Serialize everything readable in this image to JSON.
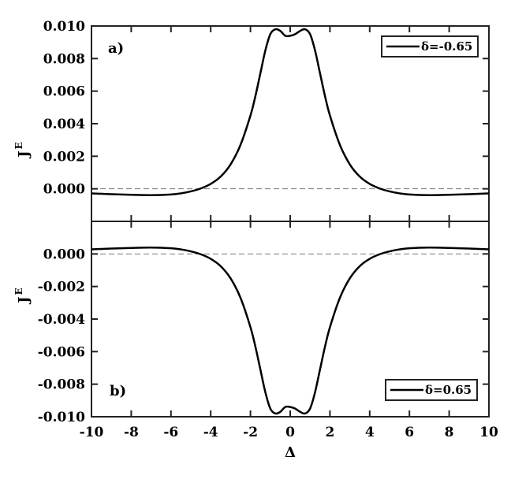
{
  "chart_data": [
    {
      "type": "line",
      "panel_label": "a)",
      "ylabel": "J",
      "ylabel_superscript": "E",
      "xlabel": "",
      "xlim": [
        -10,
        10
      ],
      "ylim": [
        -0.002,
        0.01
      ],
      "yticks": [
        0.0,
        0.002,
        0.004,
        0.006,
        0.008,
        0.01
      ],
      "ytick_labels": [
        "0.000",
        "0.002",
        "0.004",
        "0.006",
        "0.008",
        "0.010"
      ],
      "reference_line_y": 0,
      "legend_position": "top-right",
      "grid": false,
      "series": [
        {
          "name": "δ=-0.65",
          "color": "#000000",
          "x": [
            -10,
            -9,
            -8,
            -7,
            -6,
            -5.5,
            -5,
            -4.5,
            -4,
            -3.5,
            -3,
            -2.5,
            -2,
            -1.75,
            -1.5,
            -1.25,
            -1,
            -0.75,
            -0.5,
            -0.25,
            0,
            0.25,
            0.5,
            0.75,
            1,
            1.25,
            1.5,
            1.75,
            2,
            2.5,
            3,
            3.5,
            4,
            4.5,
            5,
            5.5,
            6,
            7,
            8,
            9,
            10
          ],
          "y": [
            -0.00028,
            -0.00033,
            -0.00037,
            -0.00039,
            -0.00035,
            -0.00028,
            -0.00016,
            2e-05,
            0.0003,
            0.00075,
            0.0015,
            0.0027,
            0.0045,
            0.0057,
            0.0071,
            0.0085,
            0.0095,
            0.0098,
            0.0097,
            0.0094,
            0.0094,
            0.0095,
            0.0097,
            0.0098,
            0.0095,
            0.0085,
            0.0071,
            0.0057,
            0.0045,
            0.0027,
            0.0015,
            0.00075,
            0.0003,
            2e-05,
            -0.00016,
            -0.00028,
            -0.00035,
            -0.00039,
            -0.00037,
            -0.00033,
            -0.00028
          ]
        }
      ]
    },
    {
      "type": "line",
      "panel_label": "b)",
      "ylabel": "J",
      "ylabel_superscript": "E",
      "xlabel": "Δ",
      "xlim": [
        -10,
        10
      ],
      "ylim": [
        -0.01,
        0.002
      ],
      "yticks": [
        -0.01,
        -0.008,
        -0.006,
        -0.004,
        -0.002,
        0.0
      ],
      "ytick_labels": [
        "-0.010",
        "-0.008",
        "-0.006",
        "-0.004",
        "-0.002",
        "0.000"
      ],
      "xticks": [
        -10,
        -8,
        -6,
        -4,
        -2,
        0,
        2,
        4,
        6,
        8,
        10
      ],
      "xtick_labels": [
        "-10",
        "-8",
        "-6",
        "-4",
        "-2",
        "0",
        "2",
        "4",
        "6",
        "8",
        "10"
      ],
      "reference_line_y": 0,
      "legend_position": "bottom-right",
      "grid": false,
      "series": [
        {
          "name": "δ=0.65",
          "color": "#000000",
          "x": [
            -10,
            -9,
            -8,
            -7,
            -6,
            -5.5,
            -5,
            -4.5,
            -4,
            -3.5,
            -3,
            -2.5,
            -2,
            -1.75,
            -1.5,
            -1.25,
            -1,
            -0.75,
            -0.5,
            -0.25,
            0,
            0.25,
            0.5,
            0.75,
            1,
            1.25,
            1.5,
            1.75,
            2,
            2.5,
            3,
            3.5,
            4,
            4.5,
            5,
            5.5,
            6,
            7,
            8,
            9,
            10
          ],
          "y": [
            0.00028,
            0.00033,
            0.00037,
            0.00039,
            0.00035,
            0.00028,
            0.00016,
            -2e-05,
            -0.0003,
            -0.00075,
            -0.0015,
            -0.0027,
            -0.0045,
            -0.0057,
            -0.0071,
            -0.0085,
            -0.0095,
            -0.0098,
            -0.0097,
            -0.0094,
            -0.0094,
            -0.0095,
            -0.0097,
            -0.0098,
            -0.0095,
            -0.0085,
            -0.0071,
            -0.0057,
            -0.0045,
            -0.0027,
            -0.0015,
            -0.00075,
            -0.0003,
            -2e-05,
            0.00016,
            0.00028,
            0.00035,
            0.00039,
            0.00037,
            0.00033,
            0.00028
          ]
        }
      ]
    }
  ]
}
